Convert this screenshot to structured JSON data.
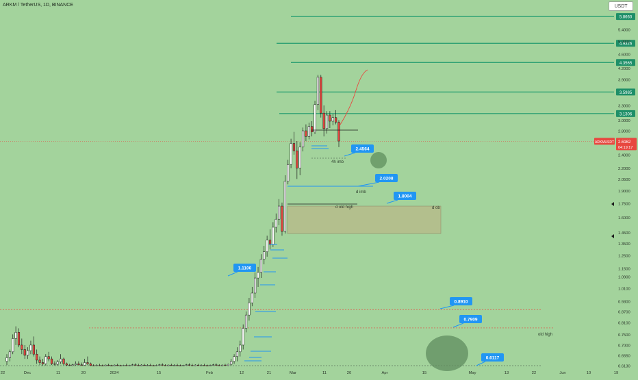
{
  "header": {
    "symbol_title": "ARKM / TetherUS, 1D, BINANCE",
    "currency_label": "USDT"
  },
  "price_tag": {
    "ticker": "ARKMUSDT",
    "price": "2.6162",
    "countdown": "04:19:17",
    "color": "#e8473f"
  },
  "colors": {
    "background": "#a3d39c",
    "level_line": "#1f9b6e",
    "level_badge": "#1e8f68",
    "callout": "#2196f3",
    "candle_up": "#ffffff",
    "candle_down": "#e8473f",
    "zone_fill": "#b8b888",
    "dotted_red": "#e8473f"
  },
  "chart_data": {
    "type": "candlestick",
    "title": "ARKM / TetherUS, 1D, BINANCE",
    "y_scale": "log",
    "ylim": [
      0.61,
      6.3
    ],
    "y_ticks": [
      "6.2000",
      "5.8660",
      "5.4000",
      "5.0000",
      "4.9326",
      "4.6000",
      "4.3565",
      "4.2000",
      "3.9000",
      "3.5985",
      "3.3000",
      "3.1306",
      "3.0000",
      "2.8000",
      "2.6162",
      "2.4000",
      "2.2000",
      "2.0500",
      "1.9000",
      "1.7500",
      "1.6000",
      "1.4500",
      "1.3500",
      "1.2500",
      "1.1500",
      "1.0900",
      "1.0100",
      "0.9300",
      "0.8700",
      "0.8100",
      "0.7500",
      "0.7000",
      "0.6550",
      "0.6130"
    ],
    "x_ticks": [
      "22",
      "Dec",
      "11",
      "20",
      "2024",
      "15",
      "Feb",
      "12",
      "21",
      "Mar",
      "11",
      "20",
      "Apr",
      "15",
      "May",
      "13",
      "22",
      "Jun",
      "10",
      "19"
    ],
    "horizontal_levels": [
      {
        "value": 5.866,
        "label": "5.8660"
      },
      {
        "value": 4.9326,
        "label": "4.9326"
      },
      {
        "value": 4.3565,
        "label": "4.3565"
      },
      {
        "value": 3.5985,
        "label": "3.5985"
      },
      {
        "value": 3.1306,
        "label": "3.1306"
      }
    ],
    "callouts": [
      {
        "label": "2.4564",
        "value": 2.4564
      },
      {
        "label": "2.0208",
        "value": 2.0208
      },
      {
        "label": "1.8004",
        "value": 1.8004
      },
      {
        "label": "1.1100",
        "value": 1.11
      },
      {
        "label": "0.8910",
        "value": 0.891
      },
      {
        "label": "0.7909",
        "value": 0.7909
      },
      {
        "label": "0.6117",
        "value": 0.6117
      }
    ],
    "annotations": [
      "4h imb",
      "d imb",
      "d old high",
      "d ob",
      "old high"
    ],
    "zone": {
      "label": "d ob",
      "top": 1.72,
      "bottom": 1.44
    },
    "candles": [
      {
        "o": 0.63,
        "h": 0.66,
        "l": 0.615,
        "c": 0.645
      },
      {
        "o": 0.645,
        "h": 0.68,
        "l": 0.63,
        "c": 0.67
      },
      {
        "o": 0.67,
        "h": 0.75,
        "l": 0.66,
        "c": 0.73
      },
      {
        "o": 0.73,
        "h": 0.79,
        "l": 0.7,
        "c": 0.76
      },
      {
        "o": 0.76,
        "h": 0.78,
        "l": 0.69,
        "c": 0.7
      },
      {
        "o": 0.7,
        "h": 0.73,
        "l": 0.66,
        "c": 0.68
      },
      {
        "o": 0.68,
        "h": 0.7,
        "l": 0.64,
        "c": 0.655
      },
      {
        "o": 0.655,
        "h": 0.69,
        "l": 0.64,
        "c": 0.675
      },
      {
        "o": 0.675,
        "h": 0.72,
        "l": 0.66,
        "c": 0.7
      },
      {
        "o": 0.7,
        "h": 0.74,
        "l": 0.65,
        "c": 0.66
      },
      {
        "o": 0.66,
        "h": 0.68,
        "l": 0.62,
        "c": 0.635
      },
      {
        "o": 0.635,
        "h": 0.65,
        "l": 0.615,
        "c": 0.625
      },
      {
        "o": 0.625,
        "h": 0.64,
        "l": 0.612,
        "c": 0.62
      },
      {
        "o": 0.62,
        "h": 0.66,
        "l": 0.613,
        "c": 0.65
      },
      {
        "o": 0.65,
        "h": 0.67,
        "l": 0.63,
        "c": 0.64
      },
      {
        "o": 0.64,
        "h": 0.65,
        "l": 0.615,
        "c": 0.62
      },
      {
        "o": 0.62,
        "h": 0.63,
        "l": 0.612,
        "c": 0.618
      },
      {
        "o": 0.618,
        "h": 0.635,
        "l": 0.612,
        "c": 0.628
      },
      {
        "o": 0.628,
        "h": 0.66,
        "l": 0.62,
        "c": 0.64
      },
      {
        "o": 0.64,
        "h": 0.645,
        "l": 0.614,
        "c": 0.62
      },
      {
        "o": 0.62,
        "h": 0.625,
        "l": 0.611,
        "c": 0.615
      },
      {
        "o": 0.615,
        "h": 0.62,
        "l": 0.611,
        "c": 0.613
      },
      {
        "o": 0.613,
        "h": 0.62,
        "l": 0.611,
        "c": 0.616
      },
      {
        "o": 0.616,
        "h": 0.63,
        "l": 0.612,
        "c": 0.62
      },
      {
        "o": 0.62,
        "h": 0.63,
        "l": 0.613,
        "c": 0.616
      },
      {
        "o": 0.616,
        "h": 0.625,
        "l": 0.612,
        "c": 0.614
      },
      {
        "o": 0.614,
        "h": 0.64,
        "l": 0.612,
        "c": 0.625
      },
      {
        "o": 0.625,
        "h": 0.65,
        "l": 0.615,
        "c": 0.62
      },
      {
        "o": 0.62,
        "h": 0.625,
        "l": 0.611,
        "c": 0.613
      },
      {
        "o": 0.613,
        "h": 0.618,
        "l": 0.611,
        "c": 0.612
      },
      {
        "o": 0.612,
        "h": 0.618,
        "l": 0.611,
        "c": 0.614
      },
      {
        "o": 0.614,
        "h": 0.62,
        "l": 0.611,
        "c": 0.613
      },
      {
        "o": 0.613,
        "h": 0.617,
        "l": 0.611,
        "c": 0.612
      },
      {
        "o": 0.612,
        "h": 0.617,
        "l": 0.611,
        "c": 0.615
      },
      {
        "o": 0.615,
        "h": 0.62,
        "l": 0.611,
        "c": 0.613
      },
      {
        "o": 0.613,
        "h": 0.616,
        "l": 0.611,
        "c": 0.612
      },
      {
        "o": 0.612,
        "h": 0.617,
        "l": 0.611,
        "c": 0.615
      },
      {
        "o": 0.615,
        "h": 0.62,
        "l": 0.611,
        "c": 0.613
      },
      {
        "o": 0.613,
        "h": 0.616,
        "l": 0.611,
        "c": 0.612
      },
      {
        "o": 0.612,
        "h": 0.616,
        "l": 0.611,
        "c": 0.614
      },
      {
        "o": 0.614,
        "h": 0.62,
        "l": 0.611,
        "c": 0.612
      },
      {
        "o": 0.612,
        "h": 0.616,
        "l": 0.611,
        "c": 0.614
      },
      {
        "o": 0.614,
        "h": 0.62,
        "l": 0.612,
        "c": 0.616
      },
      {
        "o": 0.616,
        "h": 0.622,
        "l": 0.612,
        "c": 0.614
      },
      {
        "o": 0.614,
        "h": 0.62,
        "l": 0.611,
        "c": 0.612
      },
      {
        "o": 0.612,
        "h": 0.618,
        "l": 0.611,
        "c": 0.615
      },
      {
        "o": 0.615,
        "h": 0.62,
        "l": 0.612,
        "c": 0.613
      },
      {
        "o": 0.613,
        "h": 0.618,
        "l": 0.611,
        "c": 0.614
      },
      {
        "o": 0.614,
        "h": 0.62,
        "l": 0.612,
        "c": 0.613
      },
      {
        "o": 0.613,
        "h": 0.616,
        "l": 0.611,
        "c": 0.612
      },
      {
        "o": 0.612,
        "h": 0.617,
        "l": 0.611,
        "c": 0.614
      },
      {
        "o": 0.614,
        "h": 0.62,
        "l": 0.612,
        "c": 0.616
      },
      {
        "o": 0.616,
        "h": 0.622,
        "l": 0.612,
        "c": 0.614
      },
      {
        "o": 0.614,
        "h": 0.618,
        "l": 0.611,
        "c": 0.612
      },
      {
        "o": 0.612,
        "h": 0.617,
        "l": 0.611,
        "c": 0.615
      },
      {
        "o": 0.615,
        "h": 0.62,
        "l": 0.612,
        "c": 0.613
      },
      {
        "o": 0.613,
        "h": 0.618,
        "l": 0.611,
        "c": 0.614
      },
      {
        "o": 0.614,
        "h": 0.62,
        "l": 0.612,
        "c": 0.613
      },
      {
        "o": 0.613,
        "h": 0.617,
        "l": 0.611,
        "c": 0.612
      },
      {
        "o": 0.612,
        "h": 0.616,
        "l": 0.611,
        "c": 0.614
      },
      {
        "o": 0.614,
        "h": 0.62,
        "l": 0.612,
        "c": 0.616
      },
      {
        "o": 0.616,
        "h": 0.622,
        "l": 0.612,
        "c": 0.614
      },
      {
        "o": 0.614,
        "h": 0.62,
        "l": 0.611,
        "c": 0.612
      },
      {
        "o": 0.612,
        "h": 0.618,
        "l": 0.611,
        "c": 0.615
      },
      {
        "o": 0.615,
        "h": 0.62,
        "l": 0.612,
        "c": 0.613
      },
      {
        "o": 0.613,
        "h": 0.618,
        "l": 0.611,
        "c": 0.614
      },
      {
        "o": 0.614,
        "h": 0.62,
        "l": 0.612,
        "c": 0.613
      },
      {
        "o": 0.613,
        "h": 0.617,
        "l": 0.611,
        "c": 0.612
      },
      {
        "o": 0.612,
        "h": 0.617,
        "l": 0.611,
        "c": 0.614
      },
      {
        "o": 0.614,
        "h": 0.62,
        "l": 0.612,
        "c": 0.616
      },
      {
        "o": 0.616,
        "h": 0.622,
        "l": 0.612,
        "c": 0.614
      },
      {
        "o": 0.614,
        "h": 0.618,
        "l": 0.611,
        "c": 0.612
      },
      {
        "o": 0.612,
        "h": 0.617,
        "l": 0.611,
        "c": 0.615
      },
      {
        "o": 0.615,
        "h": 0.62,
        "l": 0.612,
        "c": 0.613
      },
      {
        "o": 0.613,
        "h": 0.62,
        "l": 0.611,
        "c": 0.618
      },
      {
        "o": 0.618,
        "h": 0.64,
        "l": 0.612,
        "c": 0.63
      },
      {
        "o": 0.63,
        "h": 0.66,
        "l": 0.62,
        "c": 0.65
      },
      {
        "o": 0.65,
        "h": 0.69,
        "l": 0.63,
        "c": 0.67
      },
      {
        "o": 0.67,
        "h": 0.72,
        "l": 0.65,
        "c": 0.7
      },
      {
        "o": 0.7,
        "h": 0.8,
        "l": 0.68,
        "c": 0.78
      },
      {
        "o": 0.78,
        "h": 0.87,
        "l": 0.76,
        "c": 0.85
      },
      {
        "o": 0.85,
        "h": 0.95,
        "l": 0.82,
        "c": 0.92
      },
      {
        "o": 0.92,
        "h": 1.02,
        "l": 0.9,
        "c": 0.98
      },
      {
        "o": 0.98,
        "h": 1.12,
        "l": 0.95,
        "c": 1.08
      },
      {
        "o": 1.08,
        "h": 1.16,
        "l": 1.02,
        "c": 1.12
      },
      {
        "o": 1.12,
        "h": 1.26,
        "l": 1.08,
        "c": 1.22
      },
      {
        "o": 1.22,
        "h": 1.33,
        "l": 1.18,
        "c": 1.28
      },
      {
        "o": 1.28,
        "h": 1.42,
        "l": 1.24,
        "c": 1.38
      },
      {
        "o": 1.38,
        "h": 1.48,
        "l": 1.3,
        "c": 1.34
      },
      {
        "o": 1.34,
        "h": 1.55,
        "l": 1.32,
        "c": 1.5
      },
      {
        "o": 1.5,
        "h": 1.64,
        "l": 1.45,
        "c": 1.58
      },
      {
        "o": 1.58,
        "h": 1.8,
        "l": 1.52,
        "c": 1.72
      },
      {
        "o": 1.72,
        "h": 1.76,
        "l": 1.42,
        "c": 1.46
      },
      {
        "o": 1.46,
        "h": 2.1,
        "l": 1.44,
        "c": 2.02
      },
      {
        "o": 2.02,
        "h": 2.32,
        "l": 1.98,
        "c": 2.25
      },
      {
        "o": 2.25,
        "h": 2.66,
        "l": 2.2,
        "c": 2.58
      },
      {
        "o": 2.58,
        "h": 2.78,
        "l": 2.4,
        "c": 2.46
      },
      {
        "o": 2.46,
        "h": 2.62,
        "l": 2.05,
        "c": 2.2
      },
      {
        "o": 2.2,
        "h": 2.6,
        "l": 2.1,
        "c": 2.52
      },
      {
        "o": 2.52,
        "h": 2.86,
        "l": 2.45,
        "c": 2.8
      },
      {
        "o": 2.8,
        "h": 2.92,
        "l": 2.62,
        "c": 2.7
      },
      {
        "o": 2.7,
        "h": 2.95,
        "l": 2.65,
        "c": 2.88
      },
      {
        "o": 2.88,
        "h": 2.98,
        "l": 2.7,
        "c": 2.78
      },
      {
        "o": 2.78,
        "h": 3.4,
        "l": 2.74,
        "c": 3.32
      },
      {
        "o": 3.32,
        "h": 4.02,
        "l": 3.2,
        "c": 3.96
      },
      {
        "o": 3.96,
        "h": 4.02,
        "l": 3.05,
        "c": 3.14
      },
      {
        "o": 3.14,
        "h": 3.3,
        "l": 2.7,
        "c": 2.84
      },
      {
        "o": 2.84,
        "h": 3.18,
        "l": 2.75,
        "c": 3.1
      },
      {
        "o": 3.1,
        "h": 3.18,
        "l": 2.85,
        "c": 2.98
      },
      {
        "o": 2.98,
        "h": 3.12,
        "l": 2.9,
        "c": 3.05
      },
      {
        "o": 3.05,
        "h": 3.2,
        "l": 2.92,
        "c": 2.96
      },
      {
        "o": 2.96,
        "h": 3.0,
        "l": 2.52,
        "c": 2.62
      }
    ]
  }
}
